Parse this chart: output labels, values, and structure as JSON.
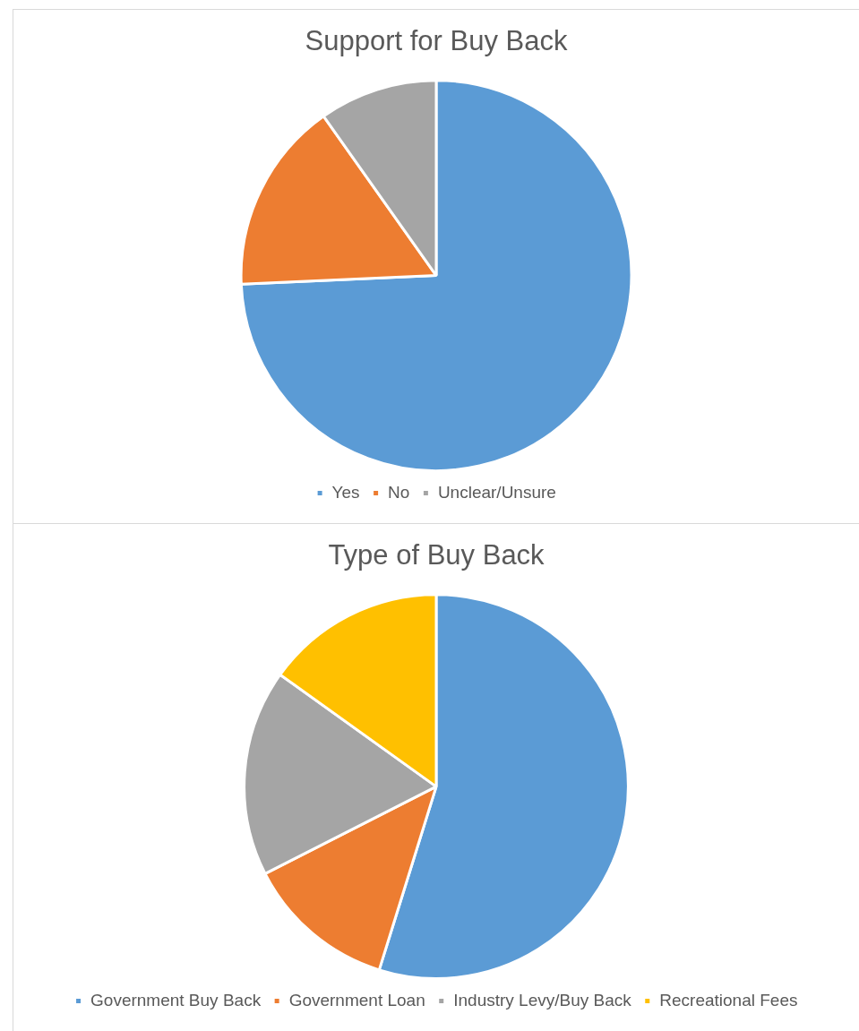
{
  "chart_data": [
    {
      "type": "pie",
      "title": "Support for Buy Back",
      "categories": [
        "Yes",
        "No",
        "Unclear/Unsure"
      ],
      "values": [
        74.3,
        15.9,
        9.8
      ],
      "colors": [
        "#5b9bd5",
        "#ed7d31",
        "#a5a5a5"
      ],
      "legend": "bottom"
    },
    {
      "type": "pie",
      "title": "Type of Buy Back",
      "categories": [
        "Government Buy Back",
        "Government Loan",
        "Industry Levy/Buy Back",
        "Recreational Fees"
      ],
      "values": [
        54.8,
        12.7,
        17.4,
        15.1
      ],
      "colors": [
        "#5b9bd5",
        "#ed7d31",
        "#a5a5a5",
        "#ffc000"
      ],
      "legend": "bottom"
    }
  ]
}
